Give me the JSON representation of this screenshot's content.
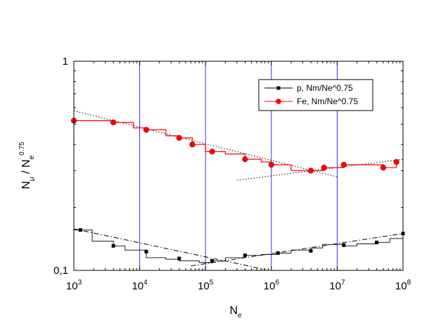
{
  "chart_data": {
    "type": "line",
    "title": "",
    "xlabel": {
      "main": "N",
      "sub": "e"
    },
    "ylabel": {
      "main": "N",
      "sub": "μ",
      "sep": " / N",
      "sub2": "e",
      "sup": "0.75"
    },
    "x_scale": "log",
    "y_scale": "log",
    "xlim": [
      1000,
      100000000
    ],
    "ylim": [
      0.1,
      1
    ],
    "x_ticks": [
      {
        "base": "10",
        "exp": "3",
        "value": 1000
      },
      {
        "base": "10",
        "exp": "4",
        "value": 10000
      },
      {
        "base": "10",
        "exp": "5",
        "value": 100000
      },
      {
        "base": "10",
        "exp": "6",
        "value": 1000000
      },
      {
        "base": "10",
        "exp": "7",
        "value": 10000000
      },
      {
        "base": "10",
        "exp": "8",
        "value": 100000000
      }
    ],
    "y_ticks": [
      {
        "label": "0,1",
        "value": 0.1
      },
      {
        "label": "1",
        "value": 1
      }
    ],
    "vertical_lines": [
      10000,
      100000,
      1000000,
      10000000
    ],
    "vertical_line_color": "#3333ff",
    "legend_position": "top-right",
    "series": [
      {
        "name": "p, Nm/Ne^0.75",
        "color": "#000000",
        "marker": "square",
        "marker_color": "#000000",
        "points": [
          [
            1259,
            0.156
          ],
          [
            3981,
            0.131
          ],
          [
            12589,
            0.123
          ],
          [
            39811,
            0.114
          ],
          [
            125893,
            0.111
          ],
          [
            398107,
            0.118
          ],
          [
            1258925,
            0.121
          ],
          [
            3981072,
            0.124
          ],
          [
            12589254,
            0.132
          ],
          [
            39810717,
            0.136
          ],
          [
            100000000,
            0.15
          ]
        ],
        "steps": [
          [
            1000,
            0.156
          ],
          [
            1900,
            0.138
          ],
          [
            3981,
            0.131
          ],
          [
            6000,
            0.125
          ],
          [
            12589,
            0.115
          ],
          [
            25000,
            0.113
          ],
          [
            39811,
            0.111
          ],
          [
            80000,
            0.109
          ],
          [
            125893,
            0.111
          ],
          [
            200000,
            0.115
          ],
          [
            398107,
            0.118
          ],
          [
            700000,
            0.119
          ],
          [
            1258925,
            0.121
          ],
          [
            2000000,
            0.125
          ],
          [
            3981072,
            0.128
          ],
          [
            6000000,
            0.133
          ],
          [
            12589254,
            0.131
          ],
          [
            20000000,
            0.134
          ],
          [
            39810717,
            0.136
          ],
          [
            63000000,
            0.142
          ],
          [
            100000000,
            0.15
          ]
        ],
        "fits": [
          {
            "style": "dashdot",
            "from": [
              1000,
              0.158
            ],
            "to": [
              800000,
              0.101
            ]
          },
          {
            "style": "dashdot",
            "from": [
              60000,
              0.105
            ],
            "to": [
              100000000,
              0.15
            ]
          }
        ]
      },
      {
        "name": "Fe, Nm/Ne^0.75",
        "color": "#ff0000",
        "marker": "circle",
        "marker_color": "#ff0000",
        "points": [
          [
            1000,
            0.52
          ],
          [
            3981,
            0.51
          ],
          [
            12589,
            0.47
          ],
          [
            39811,
            0.43
          ],
          [
            63096,
            0.4
          ],
          [
            125893,
            0.37
          ],
          [
            398107,
            0.34
          ],
          [
            1000000,
            0.32
          ],
          [
            3981072,
            0.3
          ],
          [
            6309573,
            0.31
          ],
          [
            12589254,
            0.32
          ],
          [
            50118723,
            0.31
          ],
          [
            79432823,
            0.33
          ]
        ],
        "steps": [
          [
            1000,
            0.52
          ],
          [
            2000,
            0.52
          ],
          [
            3981,
            0.51
          ],
          [
            8000,
            0.48
          ],
          [
            12589,
            0.47
          ],
          [
            25000,
            0.44
          ],
          [
            39811,
            0.43
          ],
          [
            63096,
            0.4
          ],
          [
            100000,
            0.37
          ],
          [
            200000,
            0.36
          ],
          [
            398107,
            0.34
          ],
          [
            700000,
            0.33
          ],
          [
            1000000,
            0.32
          ],
          [
            2000000,
            0.3
          ],
          [
            3981072,
            0.3
          ],
          [
            6309573,
            0.31
          ],
          [
            12589254,
            0.32
          ],
          [
            25000000,
            0.32
          ],
          [
            50118723,
            0.31
          ],
          [
            79432823,
            0.33
          ]
        ],
        "fits": [
          {
            "style": "dotted",
            "from": [
              1000,
              0.58
            ],
            "to": [
              10000000,
              0.28
            ]
          },
          {
            "style": "dotted",
            "from": [
              300000,
              0.27
            ],
            "to": [
              100000000,
              0.34
            ]
          }
        ]
      }
    ]
  }
}
